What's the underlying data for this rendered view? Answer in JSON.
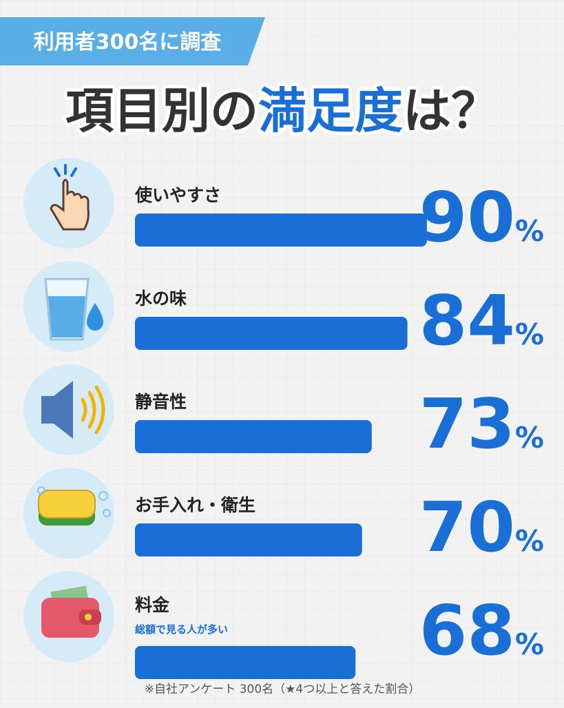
{
  "badge": "利用者300名に調査",
  "chart_data": {
    "type": "hbar",
    "title_parts": [
      "項目別の",
      "満足度",
      "は？"
    ],
    "categories": [
      "使いやすさ",
      "水の味",
      "静音性",
      "お手入れ・衛生",
      "料金"
    ],
    "category_notes": [
      null,
      null,
      null,
      null,
      "総額で見る人が多い"
    ],
    "values": [
      90,
      84,
      73,
      70,
      68
    ],
    "value_labels": [
      "90%",
      "84%",
      "73%",
      "70%",
      "68%"
    ],
    "xlim": [
      0,
      100
    ],
    "color": "#1a6fd6"
  },
  "footnote": "※自社アンケート 300名（★4つ以上と答えた割合）"
}
